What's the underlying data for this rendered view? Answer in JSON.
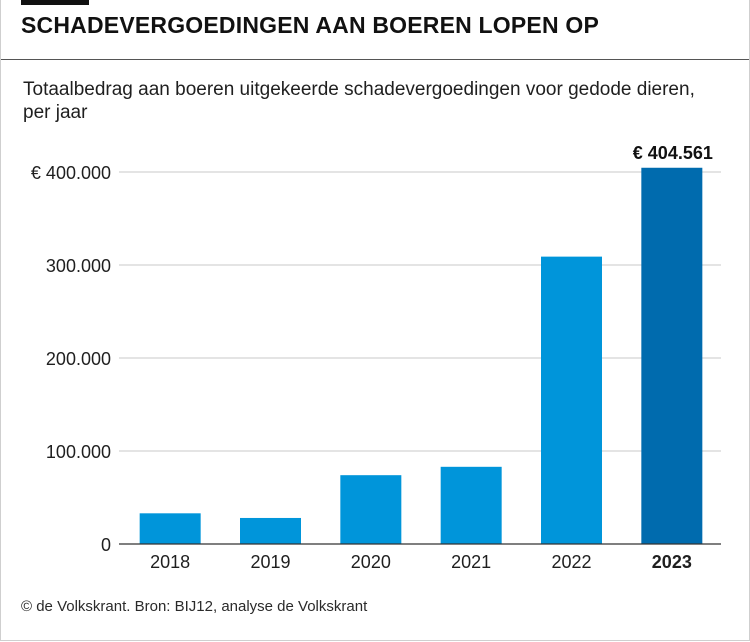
{
  "header": {
    "title": "SCHADEVERGOEDINGEN AAN BOEREN LOPEN OP",
    "subtitle": "Totaalbedrag aan boeren uitgekeerde schadevergoedingen voor gedode dieren, per jaar"
  },
  "footer": {
    "credit": "© de Volkskrant. Bron: BIJ12, analyse de Volkskrant"
  },
  "colors": {
    "bar": "#0095DA",
    "highlight_bar": "#006BAE",
    "grid": "#c8c8c8",
    "axis": "#333333"
  },
  "chart_data": {
    "type": "bar",
    "title": "SCHADEVERGOEDINGEN AAN BOEREN LOPEN OP",
    "subtitle": "Totaalbedrag aan boeren uitgekeerde schadevergoedingen voor gedode dieren, per jaar",
    "xlabel": "",
    "ylabel": "",
    "categories": [
      "2018",
      "2019",
      "2020",
      "2021",
      "2022",
      "2023"
    ],
    "values": [
      33000,
      28000,
      74000,
      83000,
      309000,
      404561
    ],
    "highlight_index": 5,
    "highlight_label": "€ 404.561",
    "ylim": [
      0,
      430000
    ],
    "y_ticks": [
      0,
      100000,
      200000,
      300000,
      400000
    ],
    "y_tick_labels": [
      "0",
      "100.000",
      "200.000",
      "300.000",
      "€ 400.000"
    ],
    "grid": true,
    "legend": "none"
  }
}
